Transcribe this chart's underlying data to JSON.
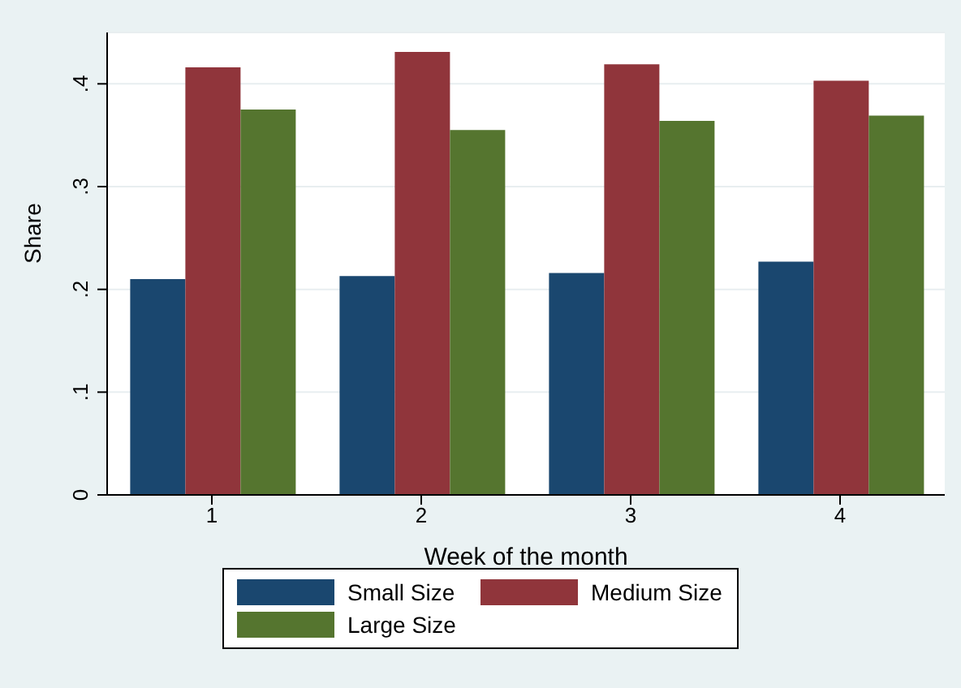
{
  "chart_data": {
    "type": "bar",
    "xlabel": "Week of the month",
    "ylabel": "Share",
    "categories": [
      "1",
      "2",
      "3",
      "4"
    ],
    "series": [
      {
        "name": "Small Size",
        "color": "#1a476f",
        "values": [
          0.21,
          0.213,
          0.216,
          0.227
        ]
      },
      {
        "name": "Medium Size",
        "color": "#90353b",
        "values": [
          0.416,
          0.431,
          0.419,
          0.403
        ]
      },
      {
        "name": "Large Size",
        "color": "#55752f",
        "values": [
          0.375,
          0.355,
          0.364,
          0.369
        ]
      }
    ],
    "ylim": [
      0,
      0.45
    ],
    "yticks": [
      0,
      {
        "value": 0.1,
        "label": ".1"
      },
      {
        "value": 0.2,
        "label": ".2"
      },
      {
        "value": 0.3,
        "label": ".3"
      },
      {
        "value": 0.4,
        "label": ".4"
      }
    ],
    "grid": "y",
    "legend": "bottom"
  }
}
